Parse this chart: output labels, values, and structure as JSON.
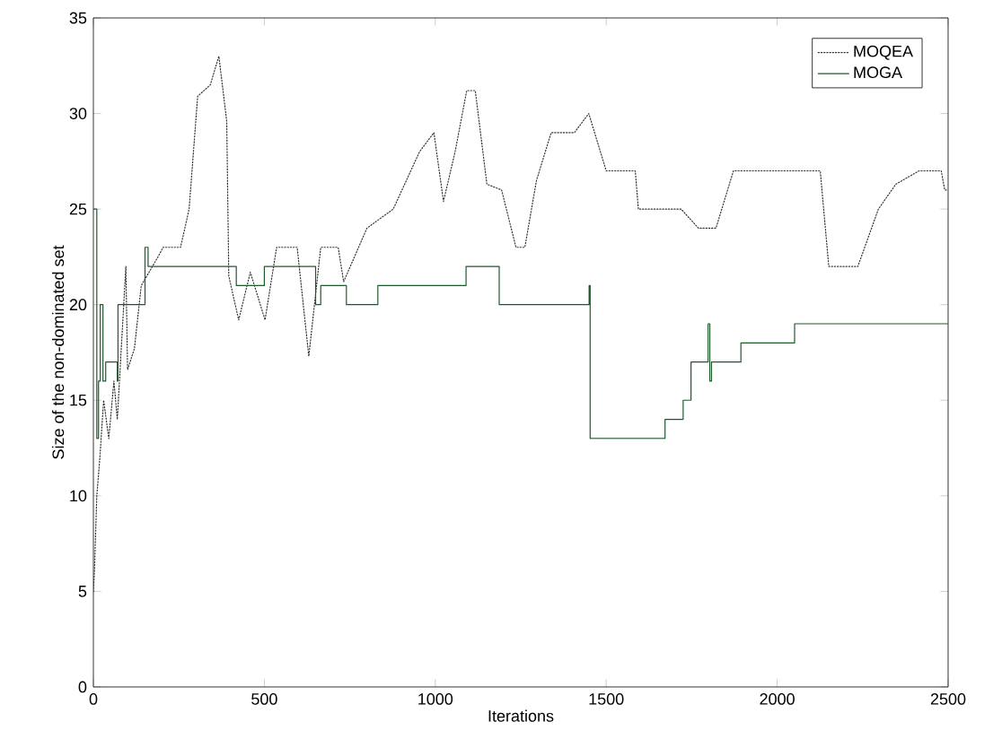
{
  "chart_data": {
    "type": "line",
    "xlabel": "Iterations",
    "ylabel": "Size of the non-dominated set",
    "xlim": [
      0,
      2500
    ],
    "ylim": [
      0,
      35
    ],
    "xticks": [
      0,
      500,
      1000,
      1500,
      2000,
      2500
    ],
    "yticks": [
      0,
      5,
      10,
      15,
      20,
      25,
      30,
      35
    ],
    "grid": false,
    "legend": "top right",
    "series": [
      {
        "name": "MOQEA",
        "type": "line",
        "line_style": "dotted",
        "color": "#333333",
        "x": [
          0,
          3,
          10,
          19,
          30,
          45,
          60,
          70,
          95,
          100,
          120,
          140,
          189,
          204,
          255,
          280,
          305,
          342,
          367,
          390,
          396,
          425,
          459,
          502,
          536,
          596,
          630,
          665,
          716,
          732,
          800,
          877,
          954,
          996,
          1024,
          1058,
          1092,
          1117,
          1151,
          1194,
          1236,
          1262,
          1296,
          1339,
          1407,
          1449,
          1500,
          1585,
          1594,
          1719,
          1770,
          1821,
          1872,
          2126,
          2151,
          2236,
          2296,
          2347,
          2415,
          2480,
          2490,
          2500
        ],
        "values": [
          5,
          6,
          10,
          12,
          15,
          13,
          16,
          14,
          22,
          16.6,
          17.7,
          21,
          22.5,
          23,
          23,
          25,
          30.9,
          31.5,
          33,
          29.6,
          21.5,
          19.2,
          21.7,
          19.2,
          23,
          23,
          17.3,
          23,
          23,
          21.2,
          24,
          25,
          28,
          29,
          25.4,
          28,
          31.2,
          31.2,
          26.3,
          26,
          23,
          23,
          26.5,
          29,
          29,
          30,
          27,
          27,
          25,
          25,
          24,
          24,
          27,
          27,
          22,
          22,
          25,
          26.3,
          27,
          27,
          26,
          26
        ]
      },
      {
        "name": "MOGA",
        "type": "step",
        "line_style": "solid",
        "color": "#1f5a2c",
        "x": [
          0,
          10,
          15,
          20,
          28,
          36,
          70,
          72,
          151,
          160,
          418,
          500,
          650,
          665,
          740,
          832,
          1090,
          1187,
          1450,
          1453,
          1672,
          1725,
          1748,
          1798,
          1803,
          1808,
          1894,
          2051,
          2500
        ],
        "values": [
          25,
          13,
          16,
          20,
          16,
          17,
          16,
          20,
          23,
          22,
          21,
          22,
          20,
          21,
          20,
          21,
          22,
          20,
          21,
          13,
          14,
          15,
          17,
          19,
          16,
          17,
          18,
          19,
          19
        ]
      }
    ]
  }
}
